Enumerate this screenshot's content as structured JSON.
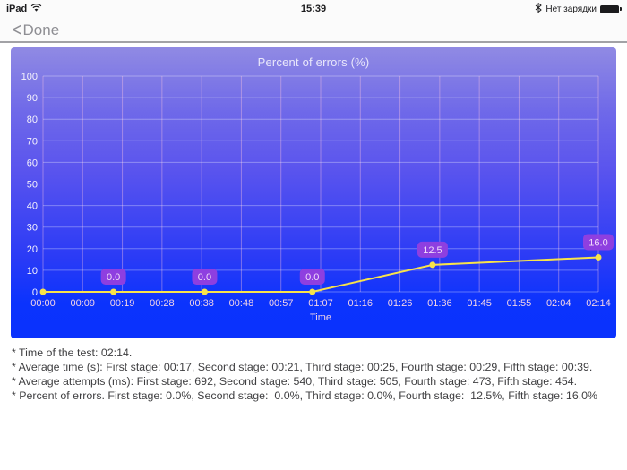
{
  "status_bar": {
    "device": "iPad",
    "time": "15:39",
    "battery_status": "Нет зарядки"
  },
  "nav": {
    "back_chevron": "<",
    "done_label": "Done"
  },
  "chart_data": {
    "type": "line",
    "title": "Percent of errors (%)",
    "xlabel": "Time",
    "ylabel": "",
    "ylim": [
      0,
      100
    ],
    "y_ticks": [
      0,
      10,
      20,
      30,
      40,
      50,
      60,
      70,
      80,
      90,
      100
    ],
    "x_tick_labels": [
      "00:00",
      "00:09",
      "00:19",
      "00:28",
      "00:38",
      "00:48",
      "00:57",
      "01:07",
      "01:16",
      "01:26",
      "01:36",
      "01:45",
      "01:55",
      "02:04",
      "02:14"
    ],
    "xlim_seconds": [
      0,
      134
    ],
    "grid": true,
    "legend_position": "none",
    "series": [
      {
        "name": "Percent of errors",
        "points": [
          {
            "t_seconds": 0,
            "value": 0.0,
            "label": ""
          },
          {
            "t_seconds": 17,
            "value": 0.0,
            "label": "0.0"
          },
          {
            "t_seconds": 39,
            "value": 0.0,
            "label": "0.0"
          },
          {
            "t_seconds": 65,
            "value": 0.0,
            "label": "0.0"
          },
          {
            "t_seconds": 94,
            "value": 12.5,
            "label": "12.5"
          },
          {
            "t_seconds": 134,
            "value": 16.0,
            "label": "16.0"
          }
        ]
      }
    ],
    "colors": {
      "line": "#f8e34a",
      "point": "#f8e34a",
      "badge_fill": "#8e3fe0",
      "badge_text": "#f2dcfa",
      "y_tick_text": "#f4f2fc",
      "x_tick_text": "#f2d4e6",
      "grid_horizontal": "rgba(255,255,255,0.32)",
      "grid_vertical": "rgba(255,198,226,0.40)",
      "panel_top": "#908ae3",
      "panel_bottom": "#0a32fd"
    }
  },
  "summary": {
    "lines": [
      "* Time of the test: 02:14.",
      "* Average time (s): First stage: 00:17, Second stage: 00:21, Third stage: 00:25, Fourth stage: 00:29, Fifth stage: 00:39.",
      "* Average attempts (ms): First stage: 692, Second stage: 540, Third stage: 505, Fourth stage: 473, Fifth stage: 454.",
      "* Percent of errors. First stage: 0.0%, Second stage:  0.0%, Third stage: 0.0%, Fourth stage:  12.5%, Fifth stage: 16.0%"
    ]
  }
}
